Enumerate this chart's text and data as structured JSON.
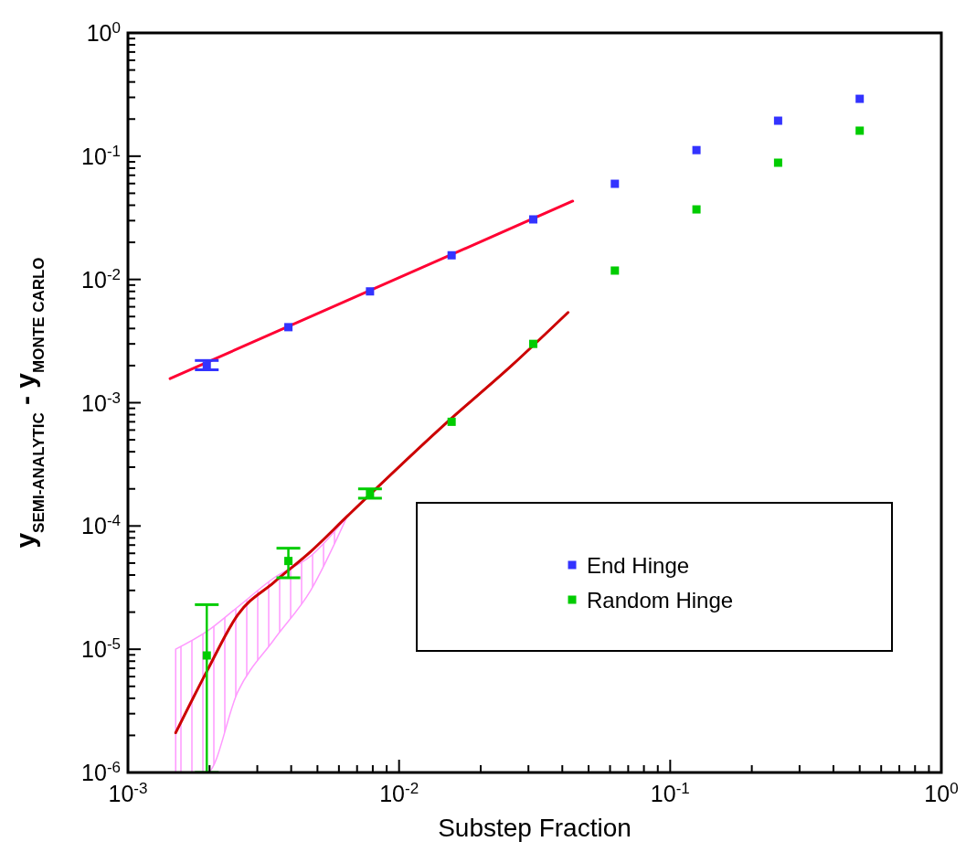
{
  "chart_data": {
    "type": "scatter",
    "xlabel": "Substep Fraction",
    "ylabel": "y$_{SEMI-ANALYTIC}$ - y$_{MONTE CARLO}$",
    "log": "xy",
    "marker": "square",
    "legend": "bottom right",
    "grid": false,
    "x": [
      0.001953125,
      0.00390625,
      0.0078125,
      0.015625,
      0.03125,
      0.0625,
      0.125,
      0.25,
      0.5
    ],
    "xlim": [
      0.001,
      1
    ],
    "ylim": [
      1e-06,
      1
    ],
    "xticks": [
      {
        "value": 0.001,
        "label": "10$^{-3}$"
      },
      {
        "value": 0.002,
        "label": null
      },
      {
        "value": 0.003,
        "label": null
      },
      {
        "value": 0.004,
        "label": null
      },
      {
        "value": 0.005,
        "label": null
      },
      {
        "value": 0.006,
        "label": null
      },
      {
        "value": 0.007,
        "label": null
      },
      {
        "value": 0.008,
        "label": null
      },
      {
        "value": 0.009,
        "label": null
      },
      {
        "value": 0.01,
        "label": "10$^{-2}$"
      },
      {
        "value": 0.02,
        "label": null
      },
      {
        "value": 0.03,
        "label": null
      },
      {
        "value": 0.04,
        "label": null
      },
      {
        "value": 0.05,
        "label": null
      },
      {
        "value": 0.06,
        "label": null
      },
      {
        "value": 0.07,
        "label": null
      },
      {
        "value": 0.08,
        "label": null
      },
      {
        "value": 0.09,
        "label": null
      },
      {
        "value": 0.1,
        "label": "10$^{-1}$"
      },
      {
        "value": 0.2,
        "label": null
      },
      {
        "value": 0.3,
        "label": null
      },
      {
        "value": 0.4,
        "label": null
      },
      {
        "value": 0.5,
        "label": null
      },
      {
        "value": 0.6,
        "label": null
      },
      {
        "value": 0.7,
        "label": null
      },
      {
        "value": 0.8,
        "label": null
      },
      {
        "value": 0.9,
        "label": null
      },
      {
        "value": 1,
        "label": "10$^{0}$"
      }
    ],
    "yticks": [
      {
        "value": 1e-06,
        "label": "10$^{-6}$"
      },
      {
        "value": 2e-06,
        "label": null
      },
      {
        "value": 3e-06,
        "label": null
      },
      {
        "value": 4e-06,
        "label": null
      },
      {
        "value": 5e-06,
        "label": null
      },
      {
        "value": 6e-06,
        "label": null
      },
      {
        "value": 7e-06,
        "label": null
      },
      {
        "value": 8e-06,
        "label": null
      },
      {
        "value": 9e-06,
        "label": null
      },
      {
        "value": 1e-05,
        "label": "10$^{-5}$"
      },
      {
        "value": 2e-05,
        "label": null
      },
      {
        "value": 3e-05,
        "label": null
      },
      {
        "value": 4e-05,
        "label": null
      },
      {
        "value": 5e-05,
        "label": null
      },
      {
        "value": 6e-05,
        "label": null
      },
      {
        "value": 7e-05,
        "label": null
      },
      {
        "value": 8e-05,
        "label": null
      },
      {
        "value": 9e-05,
        "label": null
      },
      {
        "value": 0.0001,
        "label": "10$^{-4}$"
      },
      {
        "value": 0.0002,
        "label": null
      },
      {
        "value": 0.0003,
        "label": null
      },
      {
        "value": 0.0004,
        "label": null
      },
      {
        "value": 0.0005,
        "label": null
      },
      {
        "value": 0.0006,
        "label": null
      },
      {
        "value": 0.0007,
        "label": null
      },
      {
        "value": 0.0008,
        "label": null
      },
      {
        "value": 0.0009,
        "label": null
      },
      {
        "value": 0.001,
        "label": "10$^{-3}$"
      },
      {
        "value": 0.002,
        "label": null
      },
      {
        "value": 0.003,
        "label": null
      },
      {
        "value": 0.004,
        "label": null
      },
      {
        "value": 0.005,
        "label": null
      },
      {
        "value": 0.006,
        "label": null
      },
      {
        "value": 0.007,
        "label": null
      },
      {
        "value": 0.008,
        "label": null
      },
      {
        "value": 0.009,
        "label": null
      },
      {
        "value": 0.01,
        "label": "10$^{-2}$"
      },
      {
        "value": 0.02,
        "label": null
      },
      {
        "value": 0.03,
        "label": null
      },
      {
        "value": 0.04,
        "label": null
      },
      {
        "value": 0.05,
        "label": null
      },
      {
        "value": 0.06,
        "label": null
      },
      {
        "value": 0.07,
        "label": null
      },
      {
        "value": 0.08,
        "label": null
      },
      {
        "value": 0.09,
        "label": null
      },
      {
        "value": 0.1,
        "label": "10$^{-1}$"
      },
      {
        "value": 0.2,
        "label": null
      },
      {
        "value": 0.3,
        "label": null
      },
      {
        "value": 0.4,
        "label": null
      },
      {
        "value": 0.5,
        "label": null
      },
      {
        "value": 0.6,
        "label": null
      },
      {
        "value": 0.7,
        "label": null
      },
      {
        "value": 0.8,
        "label": null
      },
      {
        "value": 0.9,
        "label": null
      },
      {
        "value": 1,
        "label": "10$^{0}$"
      }
    ],
    "series": [
      {
        "name": "End Hinge",
        "color": "#3333ff",
        "values": [
          0.002,
          0.0041,
          0.008,
          0.0157,
          0.0307,
          0.0597,
          0.112,
          0.194,
          0.292
        ],
        "errors": [
          [
            0.00185,
            0.0022
          ],
          null,
          null,
          null,
          null,
          null,
          null,
          null,
          null
        ]
      },
      {
        "name": "Random Hinge",
        "color": "#00cc00",
        "values": [
          8.9e-06,
          5.2e-05,
          0.000182,
          0.0007,
          0.003,
          0.0118,
          0.037,
          0.0885,
          0.161
        ],
        "errors": [
          [
            1e-06,
            2.3e-05
          ],
          [
            3.8e-05,
            6.6e-05
          ],
          [
            0.000168,
            0.0002
          ],
          null,
          null,
          null,
          null,
          null,
          null
        ]
      },
      {
        "type": "line",
        "marker": "none",
        "color": "#ff0033",
        "x": [
          0.00143,
          0.0437
        ],
        "values": [
          0.00157,
          0.0432
        ]
      },
      {
        "type": "line",
        "marker": "none",
        "color": "#cc0000",
        "x": [
          0.0015,
          0.00196,
          0.00254,
          0.00346,
          0.00472,
          0.00644,
          0.0078,
          0.0151,
          0.026,
          0.042
        ],
        "values": [
          2.1e-06,
          6.7e-06,
          1.9e-05,
          3.5e-05,
          6.2e-05,
          0.00012,
          null,
          0.0007,
          0.002,
          0.0054
        ],
        "lower": [
          1e-06,
          1e-06,
          4.5e-06,
          1.2e-05,
          3e-05,
          0.00012,
          null,
          null,
          null,
          null
        ],
        "upper": [
          1e-05,
          1.4e-05,
          2.2e-05,
          3.8e-05,
          5.7e-05,
          0.00012,
          null,
          null,
          null,
          null
        ]
      }
    ]
  }
}
